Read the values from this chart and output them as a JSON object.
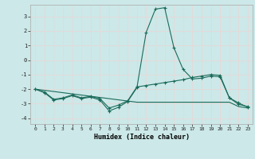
{
  "title": "",
  "xlabel": "Humidex (Indice chaleur)",
  "background_color": "#cce8e8",
  "grid_color": "#ddeeee",
  "line_color": "#1a6b5a",
  "xlim": [
    -0.5,
    23.5
  ],
  "ylim": [
    -4.4,
    3.8
  ],
  "yticks": [
    -4,
    -3,
    -2,
    -1,
    0,
    1,
    2,
    3
  ],
  "xticks": [
    0,
    1,
    2,
    3,
    4,
    5,
    6,
    7,
    8,
    9,
    10,
    11,
    12,
    13,
    14,
    15,
    16,
    17,
    18,
    19,
    20,
    21,
    22,
    23
  ],
  "line1_x": [
    0,
    1,
    2,
    3,
    4,
    5,
    6,
    7,
    8,
    9,
    10,
    11,
    12,
    13,
    14,
    15,
    16,
    17,
    18,
    19,
    20,
    21,
    22,
    23
  ],
  "line1_y": [
    -2.0,
    -2.25,
    -2.75,
    -2.65,
    -2.45,
    -2.65,
    -2.55,
    -2.75,
    -3.5,
    -3.25,
    -2.85,
    -1.9,
    1.9,
    3.5,
    3.6,
    0.85,
    -0.65,
    -1.3,
    -1.25,
    -1.1,
    -1.15,
    -2.6,
    -2.95,
    -3.25
  ],
  "line2_x": [
    0,
    1,
    2,
    3,
    4,
    5,
    6,
    7,
    8,
    9,
    10,
    11,
    12,
    13,
    14,
    15,
    16,
    17,
    18,
    19,
    20,
    21,
    22,
    23
  ],
  "line2_y": [
    -2.0,
    -2.2,
    -2.7,
    -2.6,
    -2.4,
    -2.6,
    -2.5,
    -2.65,
    -3.3,
    -3.1,
    -2.8,
    -1.85,
    -1.75,
    -1.65,
    -1.55,
    -1.45,
    -1.35,
    -1.2,
    -1.1,
    -1.0,
    -1.05,
    -2.6,
    -3.05,
    -3.2
  ],
  "line3_x": [
    0,
    11,
    12,
    13,
    14,
    15,
    16,
    17,
    18,
    19,
    20,
    21,
    22,
    23
  ],
  "line3_y": [
    -2.0,
    -2.9,
    -2.9,
    -2.9,
    -2.9,
    -2.9,
    -2.9,
    -2.9,
    -2.9,
    -2.9,
    -2.9,
    -2.9,
    -3.2,
    -3.3
  ]
}
